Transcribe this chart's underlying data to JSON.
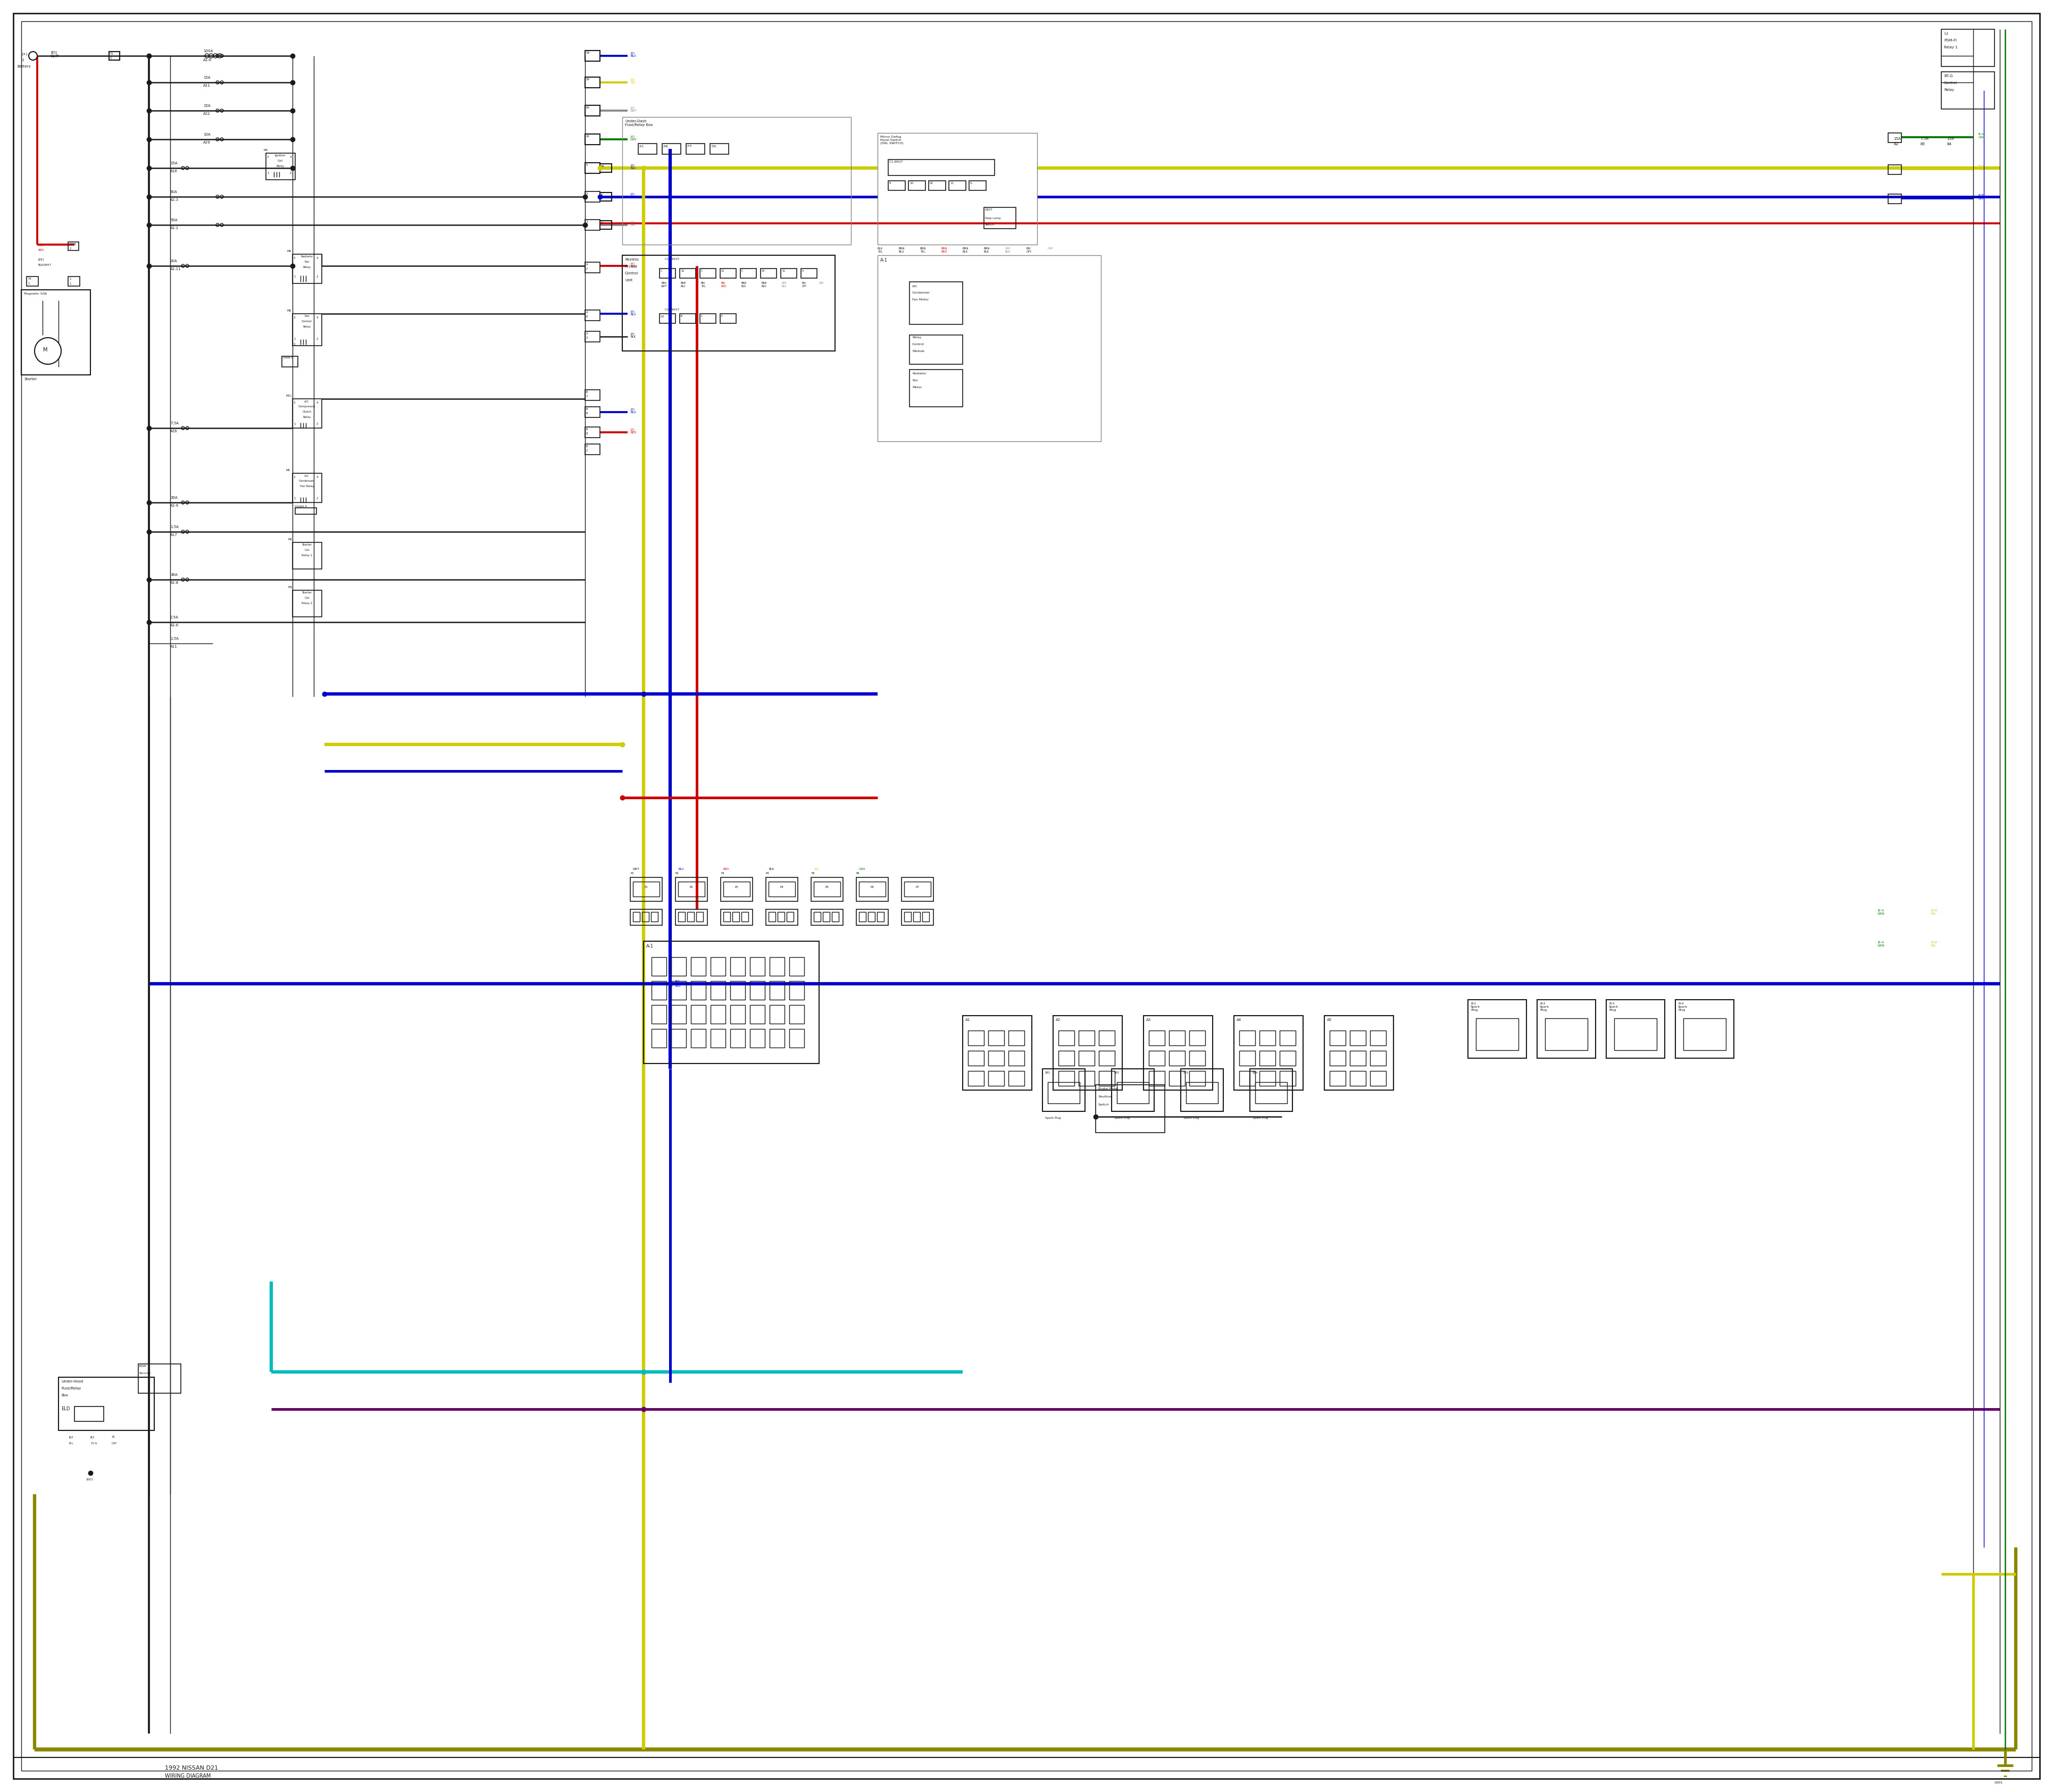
{
  "bg_color": "#ffffff",
  "wire_colors": {
    "black": "#1a1a1a",
    "red": "#cc0000",
    "blue": "#0000cc",
    "yellow": "#cccc00",
    "green": "#007700",
    "gray": "#888888",
    "cyan": "#00bbbb",
    "purple": "#660066",
    "dark_yellow": "#888800",
    "white_gray": "#bbbbbb"
  },
  "lw": 1.8,
  "tlw": 1.0,
  "clw": 1.2
}
